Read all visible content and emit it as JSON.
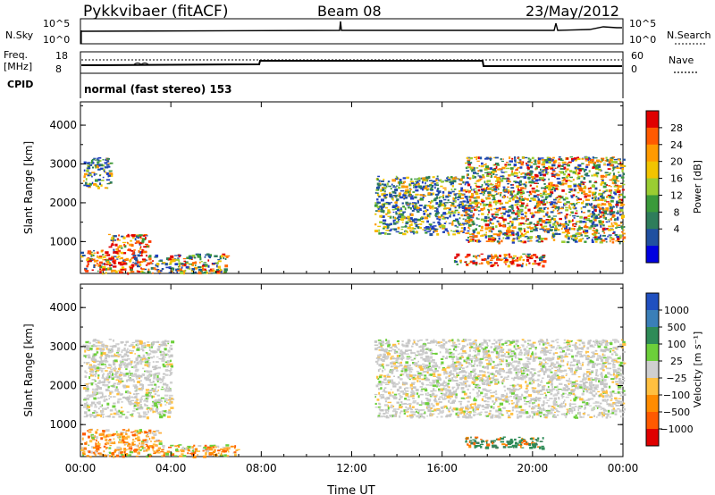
{
  "header": {
    "radar": "Pykkvibaer (fitACF)",
    "beam": "Beam 08",
    "date": "23/May/2012"
  },
  "strips": {
    "nsky": {
      "label": "N.Sky",
      "ticks": [
        "10^5",
        "10^0"
      ]
    },
    "nsearch": {
      "label": "N.Search",
      "ticks": [
        "10^5",
        "10^0"
      ]
    },
    "freq": {
      "label_line1": "Freq.",
      "label_line2": "[MHz]",
      "ticks": [
        "18",
        "8"
      ]
    },
    "nave": {
      "label": "Nave",
      "ticks": [
        "60",
        "0"
      ]
    },
    "cpid": {
      "label": "CPID",
      "text": "normal (fast stereo) 153"
    }
  },
  "chart_data": [
    {
      "type": "heatmap",
      "panel": "power",
      "xlabel": "",
      "ylabel": "Slant Range [km]",
      "x_ticks": [
        "00:00",
        "04:00",
        "08:00",
        "12:00",
        "16:00",
        "20:00",
        "00:00"
      ],
      "y_ticks": [
        "1000",
        "2000",
        "3000",
        "4000"
      ],
      "ylim": [
        180,
        4600
      ],
      "xlim_hours": [
        0,
        24
      ],
      "colorbar_label": "Power [dB]",
      "colorbar_ticks": [
        "28",
        "24",
        "20",
        "16",
        "12",
        "8",
        "4"
      ],
      "colorbar_colors": [
        "#e00000",
        "#ff5a00",
        "#ff9a00",
        "#f2c400",
        "#9acd32",
        "#3a9a3a",
        "#2e7d5b",
        "#2050a0",
        "#0000e0"
      ],
      "echo_regions": [
        {
          "hours": [
            0.0,
            1.2
          ],
          "range_km": [
            200,
            800
          ],
          "level": "high"
        },
        {
          "hours": [
            1.2,
            3.0
          ],
          "range_km": [
            200,
            1200
          ],
          "level": "high"
        },
        {
          "hours": [
            3.0,
            6.5
          ],
          "range_km": [
            200,
            700
          ],
          "level": "mid"
        },
        {
          "hours": [
            0.1,
            1.3
          ],
          "range_km": [
            2400,
            3200
          ],
          "level": "low"
        },
        {
          "hours": [
            13.0,
            17.0
          ],
          "range_km": [
            1200,
            2700
          ],
          "level": "low"
        },
        {
          "hours": [
            17.0,
            24.0
          ],
          "range_km": [
            1000,
            3200
          ],
          "level": "mid"
        },
        {
          "hours": [
            16.5,
            20.5
          ],
          "range_km": [
            400,
            700
          ],
          "level": "high"
        }
      ]
    },
    {
      "type": "heatmap",
      "panel": "velocity",
      "xlabel": "Time UT",
      "ylabel": "Slant Range [km]",
      "x_ticks": [
        "00:00",
        "04:00",
        "08:00",
        "12:00",
        "16:00",
        "20:00",
        "00:00"
      ],
      "y_ticks": [
        "1000",
        "2000",
        "3000",
        "4000"
      ],
      "ylim": [
        180,
        4600
      ],
      "xlim_hours": [
        0,
        24
      ],
      "colorbar_label": "Velocity [m s⁻¹]",
      "colorbar_ticks": [
        "1000",
        "500",
        "100",
        "25",
        "−25",
        "−100",
        "−500",
        "−1000"
      ],
      "colorbar_colors": [
        "#2050c0",
        "#3a7fb8",
        "#2e8b57",
        "#6ccf3a",
        "#cfcfcf",
        "#ffc040",
        "#ff8c00",
        "#ff5a00",
        "#e00000"
      ],
      "echo_regions": [
        {
          "hours": [
            0.0,
            3.5
          ],
          "range_km": [
            200,
            900
          ],
          "level": "orange"
        },
        {
          "hours": [
            3.5,
            7.0
          ],
          "range_km": [
            200,
            500
          ],
          "level": "orange"
        },
        {
          "hours": [
            0.1,
            4.0
          ],
          "range_km": [
            1200,
            3200
          ],
          "level": "grey"
        },
        {
          "hours": [
            13.0,
            24.0
          ],
          "range_km": [
            1200,
            3200
          ],
          "level": "grey"
        },
        {
          "hours": [
            17.0,
            20.5
          ],
          "range_km": [
            400,
            700
          ],
          "level": "green"
        }
      ]
    }
  ],
  "axis": {
    "xlabel": "Time UT"
  },
  "colors": {
    "echo_power_high": "#e00000",
    "echo_power_low": "#1f3fbf",
    "ground_scatter": "#c8c8c8"
  }
}
